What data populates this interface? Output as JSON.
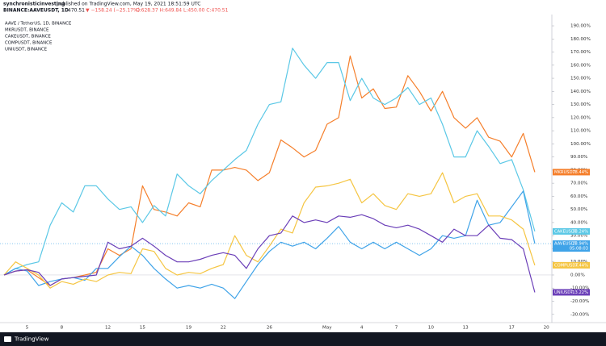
{
  "header": {
    "author": "synchronisticinvesting",
    "published": "published on TradingView.com, May 19, 2021 18:51:59 UTC",
    "symbol": "BINANCE:AAVEUSDT, 1D",
    "last": "470.51",
    "change": "▼ −158.24 (−25.17%)",
    "ohlc": "O:628.37 H:649.84 L:450.00 C:470.51"
  },
  "footer": {
    "brand": "TradingView"
  },
  "chart_data": {
    "type": "line",
    "legend": [
      "AAVE / TetherUS, 1D, BINANCE",
      "MKRUSDT, BINANCE",
      "CAKEUSDT, BINANCE",
      "COMPUSDT, BINANCE",
      "UNIUSDT, BINANCE"
    ],
    "categories": [
      null,
      null,
      "5",
      null,
      null,
      "8",
      null,
      null,
      null,
      "12",
      null,
      null,
      "15",
      null,
      null,
      null,
      "19",
      null,
      null,
      "22",
      null,
      null,
      null,
      "26",
      null,
      null,
      null,
      null,
      "May",
      null,
      null,
      "4",
      null,
      null,
      "7",
      null,
      null,
      "10",
      null,
      null,
      "13",
      null,
      null,
      null,
      "17",
      null,
      null,
      "20"
    ],
    "ylim": [
      -36.3,
      197.4
    ],
    "yticks": [
      {
        "value": 190,
        "label": "190.00%"
      },
      {
        "value": 180,
        "label": "180.00%"
      },
      {
        "value": 170,
        "label": "170.00%"
      },
      {
        "value": 160,
        "label": "160.00%"
      },
      {
        "value": 150,
        "label": "150.00%"
      },
      {
        "value": 140,
        "label": "140.00%"
      },
      {
        "value": 130,
        "label": "130.00%"
      },
      {
        "value": 120,
        "label": "120.00%"
      },
      {
        "value": 110,
        "label": "110.00%"
      },
      {
        "value": 100,
        "label": "100.00%"
      },
      {
        "value": 90,
        "label": "90.00%"
      },
      {
        "value": 80,
        "label": "80.00%"
      },
      {
        "value": 70,
        "label": "70.00%"
      },
      {
        "value": 60,
        "label": "60.00%"
      },
      {
        "value": 50,
        "label": "50.00%"
      },
      {
        "value": 40,
        "label": "40.00%"
      },
      {
        "value": 30,
        "label": "30.00%"
      },
      {
        "value": 20,
        "label": "20.00%"
      },
      {
        "value": 10,
        "label": "10.00%"
      },
      {
        "value": 0,
        "label": "0.00%"
      },
      {
        "value": -10,
        "label": "-10.00%"
      },
      {
        "value": -20,
        "label": "-20.00%"
      },
      {
        "value": -30,
        "label": "-30.00%"
      }
    ],
    "series": [
      {
        "name": "MKRUSDT",
        "color": "#f57f2b",
        "values": [
          0,
          3,
          4,
          -2,
          -8,
          -3,
          -2,
          0,
          2,
          20,
          15,
          20,
          68,
          50,
          48,
          45,
          55,
          52,
          80,
          80,
          82,
          80,
          72,
          78,
          103,
          97,
          90,
          95,
          115,
          120,
          167,
          135,
          142,
          127,
          128,
          152,
          140,
          125,
          140,
          120,
          112,
          120,
          105,
          102,
          90,
          108,
          78.44,
          null
        ],
        "value_labels": [
          null,
          null,
          null,
          null,
          null,
          null,
          null,
          null,
          null,
          null,
          null,
          null,
          null,
          null,
          null,
          null,
          null,
          null,
          null,
          null,
          null,
          null,
          null,
          null,
          null,
          null,
          null,
          null,
          null,
          null,
          null,
          null,
          null,
          null,
          null,
          null,
          null,
          null,
          null,
          null,
          null,
          null,
          null,
          null,
          null,
          null,
          "78.44%",
          null
        ]
      },
      {
        "name": "CAKEUSDT",
        "color": "#5bc8e6",
        "values": [
          0,
          5,
          8,
          10,
          38,
          55,
          48,
          68,
          68,
          58,
          50,
          52,
          40,
          53,
          45,
          77,
          68,
          62,
          72,
          80,
          88,
          95,
          115,
          130,
          132,
          173,
          160,
          150,
          162,
          162,
          133,
          150,
          135,
          130,
          135,
          143,
          130,
          135,
          115,
          90,
          90,
          110,
          98,
          85,
          88,
          65,
          33.24,
          null
        ],
        "value_labels": [
          null,
          null,
          null,
          null,
          null,
          null,
          null,
          null,
          null,
          null,
          null,
          null,
          null,
          null,
          null,
          null,
          null,
          null,
          null,
          null,
          null,
          null,
          null,
          null,
          null,
          null,
          null,
          null,
          null,
          null,
          null,
          null,
          null,
          null,
          null,
          null,
          null,
          null,
          null,
          null,
          null,
          null,
          null,
          null,
          null,
          null,
          "33.24%",
          null
        ]
      },
      {
        "name": "AAVEUSDT",
        "color": "#3fa3e8",
        "main": true,
        "countdown": "05:08:03",
        "values": [
          0,
          5,
          3,
          -8,
          -5,
          -3,
          -2,
          -4,
          5,
          5,
          14,
          22,
          15,
          5,
          -3,
          -10,
          -8,
          -10,
          -7,
          -10,
          -18,
          -5,
          8,
          18,
          25,
          22,
          25,
          20,
          28,
          37,
          25,
          20,
          25,
          20,
          25,
          20,
          15,
          20,
          30,
          28,
          30,
          57,
          38,
          40,
          52,
          64,
          23.94,
          null
        ],
        "value_labels": [
          null,
          null,
          null,
          null,
          null,
          null,
          null,
          null,
          null,
          null,
          null,
          null,
          null,
          null,
          null,
          null,
          null,
          null,
          null,
          null,
          null,
          null,
          null,
          null,
          null,
          null,
          null,
          null,
          null,
          null,
          null,
          null,
          null,
          null,
          null,
          null,
          null,
          null,
          null,
          null,
          null,
          null,
          null,
          null,
          null,
          null,
          "23.94%",
          null
        ]
      },
      {
        "name": "COMPUSDT",
        "color": "#f5c542",
        "values": [
          0,
          10,
          5,
          0,
          -10,
          -5,
          -7,
          -3,
          -5,
          0,
          2,
          1,
          20,
          18,
          5,
          0,
          2,
          1,
          5,
          8,
          30,
          15,
          10,
          22,
          35,
          32,
          55,
          67,
          68,
          70,
          73,
          55,
          62,
          53,
          50,
          62,
          60,
          62,
          78,
          55,
          60,
          62,
          45,
          45,
          42,
          35,
          7.44,
          null
        ],
        "value_labels": [
          null,
          null,
          null,
          null,
          null,
          null,
          null,
          null,
          null,
          null,
          null,
          null,
          null,
          null,
          null,
          null,
          null,
          null,
          null,
          null,
          null,
          null,
          null,
          null,
          null,
          null,
          null,
          null,
          null,
          null,
          null,
          null,
          null,
          null,
          null,
          null,
          null,
          null,
          null,
          null,
          null,
          null,
          null,
          null,
          null,
          null,
          "7.44%",
          null
        ]
      },
      {
        "name": "UNIUSDT",
        "color": "#6b3fb8",
        "values": [
          0,
          3,
          4,
          2,
          -8,
          -3,
          -2,
          -1,
          0,
          25,
          20,
          22,
          28,
          22,
          15,
          10,
          10,
          12,
          15,
          17,
          15,
          5,
          20,
          30,
          32,
          45,
          40,
          42,
          40,
          45,
          44,
          46,
          43,
          38,
          36,
          38,
          35,
          30,
          25,
          35,
          30,
          30,
          38,
          28,
          27,
          20,
          -13.22,
          null
        ],
        "value_labels": [
          null,
          null,
          null,
          null,
          null,
          null,
          null,
          null,
          null,
          null,
          null,
          null,
          null,
          null,
          null,
          null,
          null,
          null,
          null,
          null,
          null,
          null,
          null,
          null,
          null,
          null,
          null,
          null,
          null,
          null,
          null,
          null,
          null,
          null,
          null,
          null,
          null,
          null,
          null,
          null,
          null,
          null,
          null,
          null,
          null,
          null,
          "-13.22%",
          null
        ]
      }
    ]
  }
}
